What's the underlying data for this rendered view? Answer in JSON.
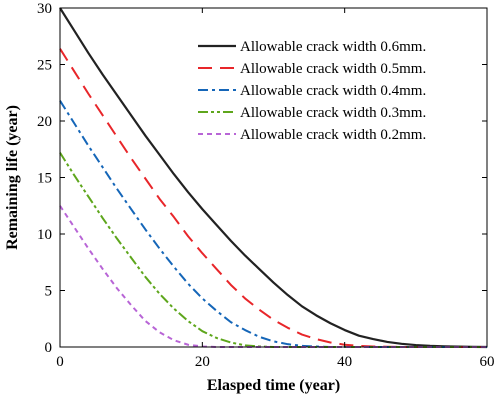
{
  "chart_data": {
    "type": "line",
    "title": "",
    "xlabel": "Elasped time (year)",
    "ylabel": "Remaining life (year)",
    "xlim": [
      0,
      60
    ],
    "ylim": [
      0,
      30
    ],
    "xticks": [
      0,
      20,
      40,
      60
    ],
    "yticks": [
      0,
      5,
      10,
      15,
      20,
      25,
      30
    ],
    "grid": false,
    "legend_position": "top-right",
    "x": [
      0,
      2,
      4,
      6,
      8,
      10,
      12,
      14,
      16,
      18,
      20,
      22,
      24,
      26,
      28,
      30,
      32,
      34,
      36,
      38,
      40,
      42,
      44,
      46,
      48,
      50,
      52,
      54,
      56,
      58,
      60
    ],
    "series": [
      {
        "name": "Allowable crack width 0.6mm.",
        "color": "#222222",
        "dash": "solid",
        "values": [
          30.0,
          28.0,
          26.0,
          24.1,
          22.3,
          20.5,
          18.7,
          17.0,
          15.3,
          13.7,
          12.2,
          10.8,
          9.4,
          8.1,
          6.9,
          5.7,
          4.6,
          3.6,
          2.8,
          2.1,
          1.5,
          1.0,
          0.7,
          0.45,
          0.28,
          0.17,
          0.1,
          0.06,
          0.03,
          0.01,
          0.0
        ]
      },
      {
        "name": "Allowable crack width 0.5mm.",
        "color": "#e8262a",
        "dash": "long-dash",
        "values": [
          26.4,
          24.4,
          22.4,
          20.5,
          18.6,
          16.7,
          14.9,
          13.1,
          11.5,
          9.8,
          8.3,
          6.9,
          5.5,
          4.3,
          3.3,
          2.4,
          1.7,
          1.1,
          0.7,
          0.4,
          0.2,
          0.1,
          0.05,
          0.02,
          0.0,
          0.0,
          0.0,
          0.0,
          0.0,
          0.0,
          0.0
        ]
      },
      {
        "name": "Allowable crack width 0.4mm.",
        "color": "#1566b8",
        "dash": "dash-dot",
        "values": [
          21.8,
          19.8,
          17.8,
          15.9,
          14.0,
          12.2,
          10.4,
          8.7,
          7.1,
          5.6,
          4.3,
          3.2,
          2.2,
          1.5,
          0.9,
          0.5,
          0.25,
          0.1,
          0.04,
          0.0,
          0.0,
          0.0,
          0.0,
          0.0,
          0.0,
          0.0,
          0.0,
          0.0,
          0.0,
          0.0,
          0.0
        ]
      },
      {
        "name": "Allowable crack width 0.3mm.",
        "color": "#5ea61c",
        "dash": "dash-dot-dot",
        "values": [
          17.2,
          15.2,
          13.3,
          11.4,
          9.6,
          7.9,
          6.2,
          4.7,
          3.4,
          2.3,
          1.4,
          0.8,
          0.4,
          0.15,
          0.05,
          0.0,
          0.0,
          0.0,
          0.0,
          0.0,
          0.0,
          0.0,
          0.0,
          0.0,
          0.0,
          0.0,
          0.0,
          0.0,
          0.0,
          0.0,
          0.0
        ]
      },
      {
        "name": "Allowable crack width 0.2mm.",
        "color": "#b865d6",
        "dash": "short-dash",
        "values": [
          12.5,
          10.6,
          8.7,
          6.9,
          5.2,
          3.7,
          2.3,
          1.3,
          0.6,
          0.2,
          0.05,
          0.0,
          0.0,
          0.0,
          0.0,
          0.0,
          0.0,
          0.0,
          0.0,
          0.0,
          0.0,
          0.0,
          0.0,
          0.0,
          0.0,
          0.0,
          0.0,
          0.0,
          0.0,
          0.0,
          0.0
        ]
      }
    ]
  }
}
